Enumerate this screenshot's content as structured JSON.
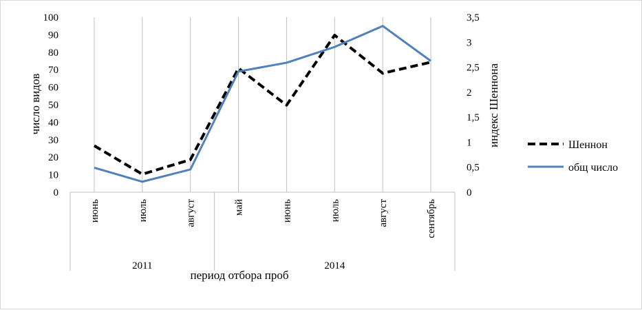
{
  "chart_data": {
    "type": "line",
    "categories": [
      "июнь",
      "июль",
      "август",
      "май",
      "июнь",
      "июль",
      "август",
      "сентябрь"
    ],
    "groups": [
      {
        "label": "2011",
        "count": 3
      },
      {
        "label": "2014",
        "count": 5
      }
    ],
    "xlabel": "период отбора проб",
    "ylabel_left": "число видов",
    "ylabel_right": "индекс Шеннона",
    "y_left_ticks": [
      "0",
      "10",
      "20",
      "30",
      "40",
      "50",
      "60",
      "70",
      "80",
      "90",
      "100"
    ],
    "y_right_ticks": [
      "0",
      "0,5",
      "1",
      "1,5",
      "2",
      "2,5",
      "3",
      "3,5"
    ],
    "ylim_left": [
      0,
      100
    ],
    "ylim_right": [
      0,
      3.5
    ],
    "series": [
      {
        "name": "Шеннон",
        "axis": "right",
        "style": "dashed",
        "color": "#000000",
        "values": [
          0.93,
          0.36,
          0.65,
          2.48,
          1.74,
          3.14,
          2.38,
          2.6
        ]
      },
      {
        "name": "общ число",
        "axis": "left",
        "style": "solid",
        "color": "#4f81bd",
        "values": [
          14,
          6,
          13,
          69,
          74,
          83,
          95,
          75
        ]
      }
    ],
    "grid": "vertical category lines",
    "legend_position": "right"
  }
}
